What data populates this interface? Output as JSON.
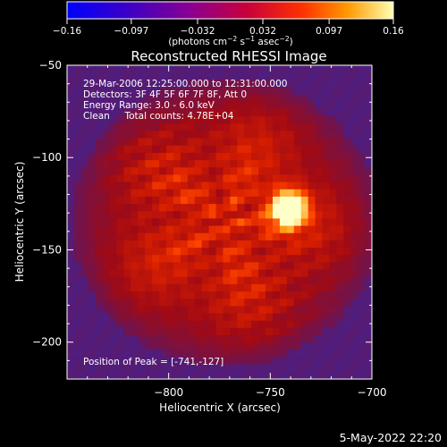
{
  "chart_data": {
    "type": "heatmap",
    "title": "Reconstructed RHESSI Image",
    "xlabel": "Heliocentric X (arcsec)",
    "ylabel": "Heliocentric Y (arcsec)",
    "xlim": [
      -850,
      -700
    ],
    "ylim": [
      -220,
      -50
    ],
    "x_ticks": [
      -800,
      -750,
      -700
    ],
    "x_tick_labels": [
      "−800",
      "−750",
      "−700"
    ],
    "y_ticks": [
      -50,
      -100,
      -150,
      -200
    ],
    "y_tick_labels": [
      "−50",
      "−100",
      "−150",
      "−200"
    ],
    "colorbar": {
      "range": [
        -0.16,
        0.16
      ],
      "ticks": [
        -0.16,
        -0.097,
        -0.032,
        0.032,
        0.097,
        0.16
      ],
      "tick_labels": [
        "−0.16",
        "−0.097",
        "−0.032",
        "0.032",
        "0.097",
        "0.16"
      ],
      "unit_main": "(photons cm",
      "unit_sup1": "−2",
      "unit_mid": " s",
      "unit_sup2": "−1",
      "unit_mid2": " asec",
      "unit_sup3": "−2",
      "unit_end": ")"
    },
    "peak": {
      "x": -741,
      "y": -127,
      "value": 0.16
    },
    "annotations": [
      "29-Mar-2006 12:25:00.000 to 12:31:00.000",
      "Detectors: 3F 4F 5F 6F 7F 8F, Att 0",
      "Energy Range: 3.0 - 6.0 keV",
      "Clean     Total counts: 4.78E+04"
    ],
    "peak_label": "Position of Peak = [-741,-127]"
  },
  "footer": {
    "date": "5-May-2022 22:20"
  }
}
